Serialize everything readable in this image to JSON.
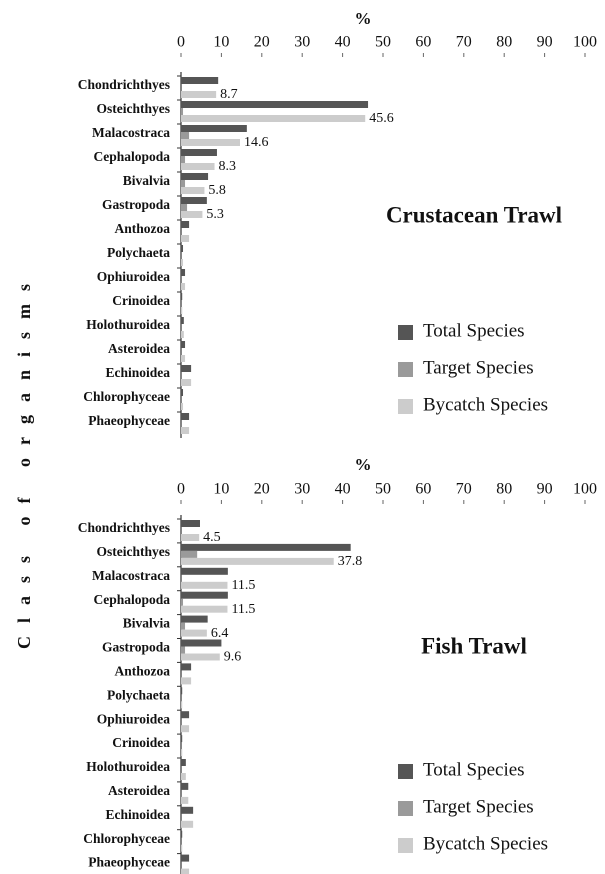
{
  "chart_data": [
    {
      "type": "hbar",
      "title": "Crustacean Trawl",
      "xlabel": "%",
      "ylabel": "Class of organisms",
      "categories": [
        "Chondrichthyes",
        "Osteichthyes",
        "Malacostraca",
        "Cephalopoda",
        "Bivalvia",
        "Gastropoda",
        "Anthozoa",
        "Polychaeta",
        "Ophiuroidea",
        "Crinoidea",
        "Holothuroidea",
        "Asteroidea",
        "Echinoidea",
        "Chlorophyceae",
        "Phaeophyceae"
      ],
      "series": [
        {
          "name": "Total Species",
          "color": "#555555",
          "values": [
            9.2,
            46.3,
            16.3,
            8.9,
            6.7,
            6.4,
            2,
            0.5,
            1,
            0.3,
            0.7,
            1,
            2.5,
            0.5,
            2
          ]
        },
        {
          "name": "Target Species",
          "color": "#9a9a9a",
          "values": [
            0,
            0.5,
            2,
            1,
            1,
            1.5,
            0,
            0,
            0,
            0,
            0,
            0,
            0,
            0,
            0
          ]
        },
        {
          "name": "Bycatch Species",
          "color": "#cccccc",
          "values": [
            8.7,
            45.6,
            14.6,
            8.3,
            5.8,
            5.3,
            2,
            0.5,
            1,
            0.3,
            0.7,
            1,
            2.5,
            0.5,
            2
          ],
          "value_labels": [
            "8.7",
            "45.6",
            "14.6",
            "8.3",
            "5.8",
            "5.3",
            null,
            null,
            null,
            null,
            null,
            null,
            null,
            null,
            null
          ]
        }
      ],
      "xlim": [
        0,
        100
      ],
      "xticks": [
        0,
        10,
        20,
        30,
        40,
        50,
        60,
        70,
        80,
        90,
        100
      ],
      "legend": "lower right"
    },
    {
      "type": "hbar",
      "title": "Fish Trawl",
      "xlabel": "%",
      "categories": [
        "Chondrichthyes",
        "Osteichthyes",
        "Malacostraca",
        "Cephalopoda",
        "Bivalvia",
        "Gastropoda",
        "Anthozoa",
        "Polychaeta",
        "Ophiuroidea",
        "Crinoidea",
        "Holothuroidea",
        "Asteroidea",
        "Echinoidea",
        "Chlorophyceae",
        "Phaeophyceae"
      ],
      "series": [
        {
          "name": "Total Species",
          "color": "#555555",
          "values": [
            4.7,
            42,
            11.6,
            11.6,
            6.6,
            10,
            2.5,
            0.3,
            2,
            0.3,
            1.2,
            1.8,
            3,
            0.3,
            2
          ]
        },
        {
          "name": "Target Species",
          "color": "#9a9a9a",
          "values": [
            0,
            4,
            0,
            0.5,
            1,
            1,
            0,
            0,
            0,
            0,
            0,
            0,
            0,
            0,
            0
          ]
        },
        {
          "name": "Bycatch Species",
          "color": "#cccccc",
          "values": [
            4.5,
            37.8,
            11.5,
            11.5,
            6.4,
            9.6,
            2.5,
            0.3,
            2,
            0.3,
            1.2,
            1.8,
            3,
            0.3,
            2
          ],
          "value_labels": [
            "4.5",
            "37.8",
            "11.5",
            "11.5",
            "6.4",
            "9.6",
            null,
            null,
            null,
            null,
            null,
            null,
            null,
            null,
            null
          ]
        }
      ],
      "xlim": [
        0,
        100
      ],
      "xticks": [
        0,
        10,
        20,
        30,
        40,
        50,
        60,
        70,
        80,
        90,
        100
      ],
      "legend": "lower right"
    }
  ]
}
